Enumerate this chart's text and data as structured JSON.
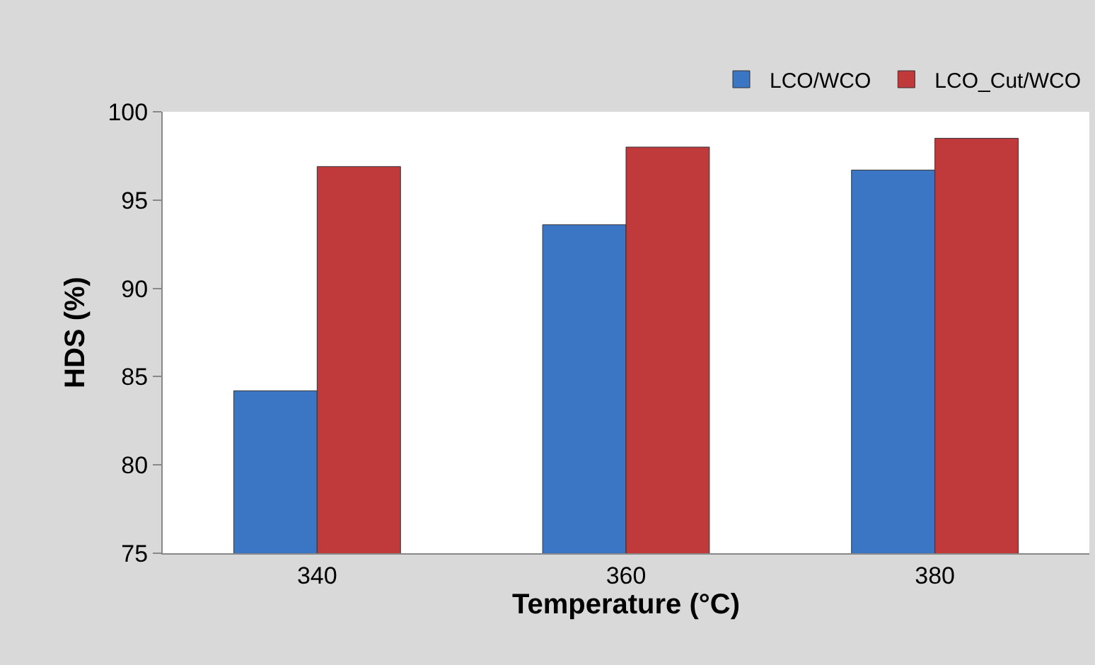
{
  "chart_data": {
    "type": "bar",
    "xlabel": "Temperature (°C)",
    "ylabel": "HDS (%)",
    "categories": [
      "340",
      "360",
      "380"
    ],
    "series": [
      {
        "name": "LCO/WCO",
        "color": "#3a76c4",
        "values": [
          84.2,
          93.6,
          96.7
        ]
      },
      {
        "name": "LCO_Cut/WCO",
        "color": "#c0393b",
        "values": [
          96.9,
          98.0,
          98.5
        ]
      }
    ],
    "ylim": [
      75,
      100
    ],
    "yticks": [
      75,
      80,
      85,
      90,
      95,
      100
    ],
    "legend": "top right"
  }
}
